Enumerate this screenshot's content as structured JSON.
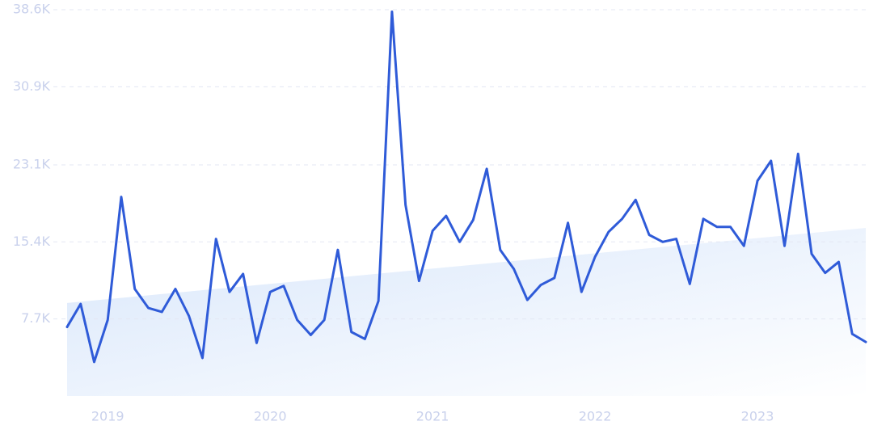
{
  "chart_data": {
    "type": "line",
    "categories": [
      null,
      null,
      null,
      "2019",
      null,
      null,
      null,
      null,
      null,
      null,
      null,
      null,
      null,
      null,
      null,
      "2020",
      null,
      null,
      null,
      null,
      null,
      null,
      null,
      null,
      null,
      null,
      null,
      "2021",
      null,
      null,
      null,
      null,
      null,
      null,
      null,
      null,
      null,
      null,
      null,
      "2022",
      null,
      null,
      null,
      null,
      null,
      null,
      null,
      null,
      null,
      null,
      null,
      "2023",
      null,
      null,
      null,
      null,
      null,
      null,
      null,
      null
    ],
    "values": [
      6900,
      9200,
      3400,
      7600,
      19900,
      10700,
      8800,
      8400,
      10700,
      8000,
      3800,
      15700,
      10400,
      12200,
      5300,
      10400,
      11000,
      7600,
      6100,
      7600,
      14600,
      6400,
      5700,
      9500,
      38400,
      19100,
      11500,
      16500,
      18000,
      15400,
      17600,
      22700,
      14600,
      12700,
      9600,
      11100,
      11800,
      17300,
      10400,
      13900,
      16400,
      17700,
      19600,
      16100,
      15400,
      15700,
      11200,
      17700,
      16900,
      16900,
      15000,
      21500,
      23500,
      15000,
      24200,
      14200,
      12300,
      13400,
      6200,
      5400
    ],
    "color": "#2f5bd8",
    "trendline": [
      9300,
      16800
    ],
    "ylim": [
      0,
      38600
    ],
    "yticks": [
      {
        "value": 7700,
        "label": "7.7K"
      },
      {
        "value": 15400,
        "label": "15.4K"
      },
      {
        "value": 23100,
        "label": "23.1K"
      },
      {
        "value": 30900,
        "label": "30.9K"
      },
      {
        "value": 38600,
        "label": "38.6K"
      }
    ],
    "grid": true
  }
}
